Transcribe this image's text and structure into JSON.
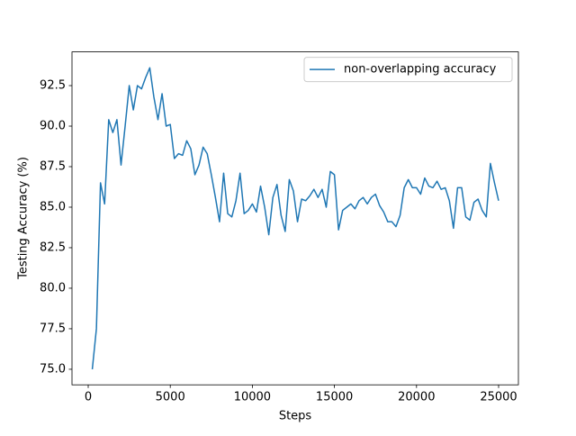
{
  "chart_data": {
    "type": "line",
    "xlabel": "Steps",
    "ylabel": "Testing Accuracy (%)",
    "x": [
      250,
      500,
      750,
      1000,
      1250,
      1500,
      1750,
      2000,
      2250,
      2500,
      2750,
      3000,
      3250,
      3500,
      3750,
      4000,
      4250,
      4500,
      4750,
      5000,
      5250,
      5500,
      5750,
      6000,
      6250,
      6500,
      6750,
      7000,
      7250,
      7500,
      7750,
      8000,
      8250,
      8500,
      8750,
      9000,
      9250,
      9500,
      9750,
      10000,
      10250,
      10500,
      10750,
      11000,
      11250,
      11500,
      11750,
      12000,
      12250,
      12500,
      12750,
      13000,
      13250,
      13500,
      13750,
      14000,
      14250,
      14500,
      14750,
      15000,
      15250,
      15500,
      15750,
      16000,
      16250,
      16500,
      16750,
      17000,
      17250,
      17500,
      17750,
      18000,
      18250,
      18500,
      18750,
      19000,
      19250,
      19500,
      19750,
      20000,
      20250,
      20500,
      20750,
      21000,
      21250,
      21500,
      21750,
      22000,
      22250,
      22500,
      22750,
      23000,
      23250,
      23500,
      23750,
      24000,
      24250,
      24500,
      24750,
      25000
    ],
    "series": [
      {
        "name": "non-overlapping accuracy",
        "color": "#1f77b4",
        "values": [
          75.0,
          77.5,
          86.5,
          85.2,
          90.4,
          89.6,
          90.4,
          87.6,
          90.0,
          92.5,
          91.0,
          92.5,
          92.3,
          93.0,
          93.6,
          91.8,
          90.4,
          92.0,
          90.0,
          90.1,
          88.0,
          88.3,
          88.2,
          89.1,
          88.6,
          87.0,
          87.6,
          88.7,
          88.3,
          87.0,
          85.6,
          84.1,
          87.1,
          84.6,
          84.4,
          85.4,
          87.1,
          84.6,
          84.8,
          85.2,
          84.7,
          86.3,
          85.0,
          83.3,
          85.6,
          86.4,
          84.5,
          83.5,
          86.7,
          86.0,
          84.1,
          85.5,
          85.4,
          85.7,
          86.1,
          85.6,
          86.1,
          85.0,
          87.2,
          87.0,
          83.6,
          84.8,
          85.0,
          85.2,
          84.9,
          85.4,
          85.6,
          85.2,
          85.6,
          85.8,
          85.1,
          84.7,
          84.1,
          84.1,
          83.8,
          84.5,
          86.2,
          86.7,
          86.2,
          86.2,
          85.8,
          86.8,
          86.3,
          86.2,
          86.6,
          86.1,
          86.2,
          85.4,
          83.7,
          86.2,
          86.2,
          84.4,
          84.2,
          85.3,
          85.5,
          84.8,
          84.4,
          87.7,
          86.5,
          85.4
        ]
      }
    ],
    "xlim": [
      -987,
      26206
    ],
    "ylim": [
      74.04,
      94.58
    ],
    "xticks": [
      0,
      5000,
      10000,
      15000,
      20000,
      25000
    ],
    "yticks": [
      {
        "value": 75.0,
        "label": "75.0"
      },
      77.5,
      {
        "value": 80.0,
        "label": "80.0"
      },
      82.5,
      {
        "value": 85.0,
        "label": "85.0"
      },
      87.5,
      {
        "value": 90.0,
        "label": "90.0"
      },
      92.5
    ],
    "legend": "upper right"
  }
}
